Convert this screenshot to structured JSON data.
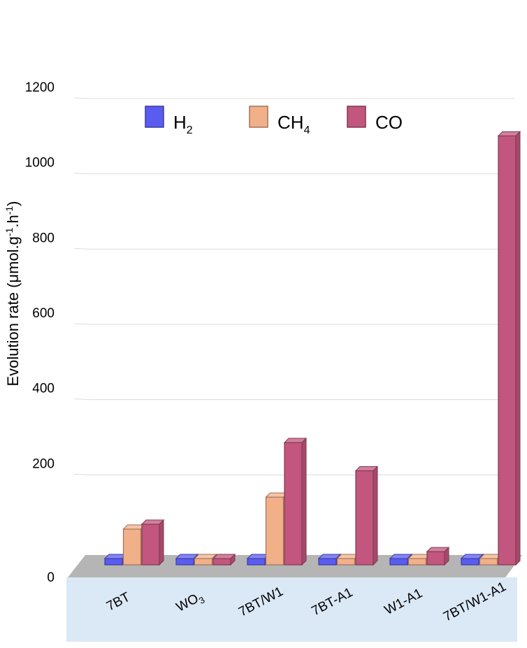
{
  "chart_data": {
    "type": "bar",
    "categories": [
      "7BT",
      "WO3",
      "7BT/W1",
      "7BT-A1",
      "W1-A1",
      "7BT/W1-A1"
    ],
    "category_display": [
      {
        "base": "7BT",
        "sub": ""
      },
      {
        "base": "WO",
        "sub": "3"
      },
      {
        "base": "7BT/W1",
        "sub": ""
      },
      {
        "base": "7BT-A1",
        "sub": ""
      },
      {
        "base": "W1-A1",
        "sub": ""
      },
      {
        "base": "7BT/W1-A1",
        "sub": ""
      }
    ],
    "series": [
      {
        "name": "H2",
        "display": {
          "base": "H",
          "sub": "2"
        },
        "color": "#5a5cf0",
        "values": [
          0,
          0,
          0,
          0,
          0,
          0
        ]
      },
      {
        "name": "CH4",
        "display": {
          "base": "CH",
          "sub": "4"
        },
        "color": "#f2b089",
        "values": [
          95,
          0,
          180,
          10,
          0,
          0
        ]
      },
      {
        "name": "CO",
        "display": {
          "base": "CO",
          "sub": ""
        },
        "color": "#c2567e",
        "values": [
          108,
          0,
          325,
          250,
          35,
          1140
        ]
      }
    ],
    "ylabel": "Evolution rate (μmol.g⁻¹.h⁻¹)",
    "ylabel_parts": [
      "Evolution rate (",
      "μ",
      "mol.g",
      "-1",
      ".h",
      "-1",
      ")"
    ],
    "ylim": [
      0,
      1200
    ],
    "yticks": [
      "0",
      "200",
      "400",
      "600",
      "800",
      "1000",
      "1200"
    ],
    "grid": true,
    "legend_position": "top-left",
    "floor_color": "#b5b5b5",
    "category_band_color": "#dbe8f5",
    "highlight_colors": {
      "H2": "#3a38e8",
      "CO": "#f07ab0"
    }
  }
}
